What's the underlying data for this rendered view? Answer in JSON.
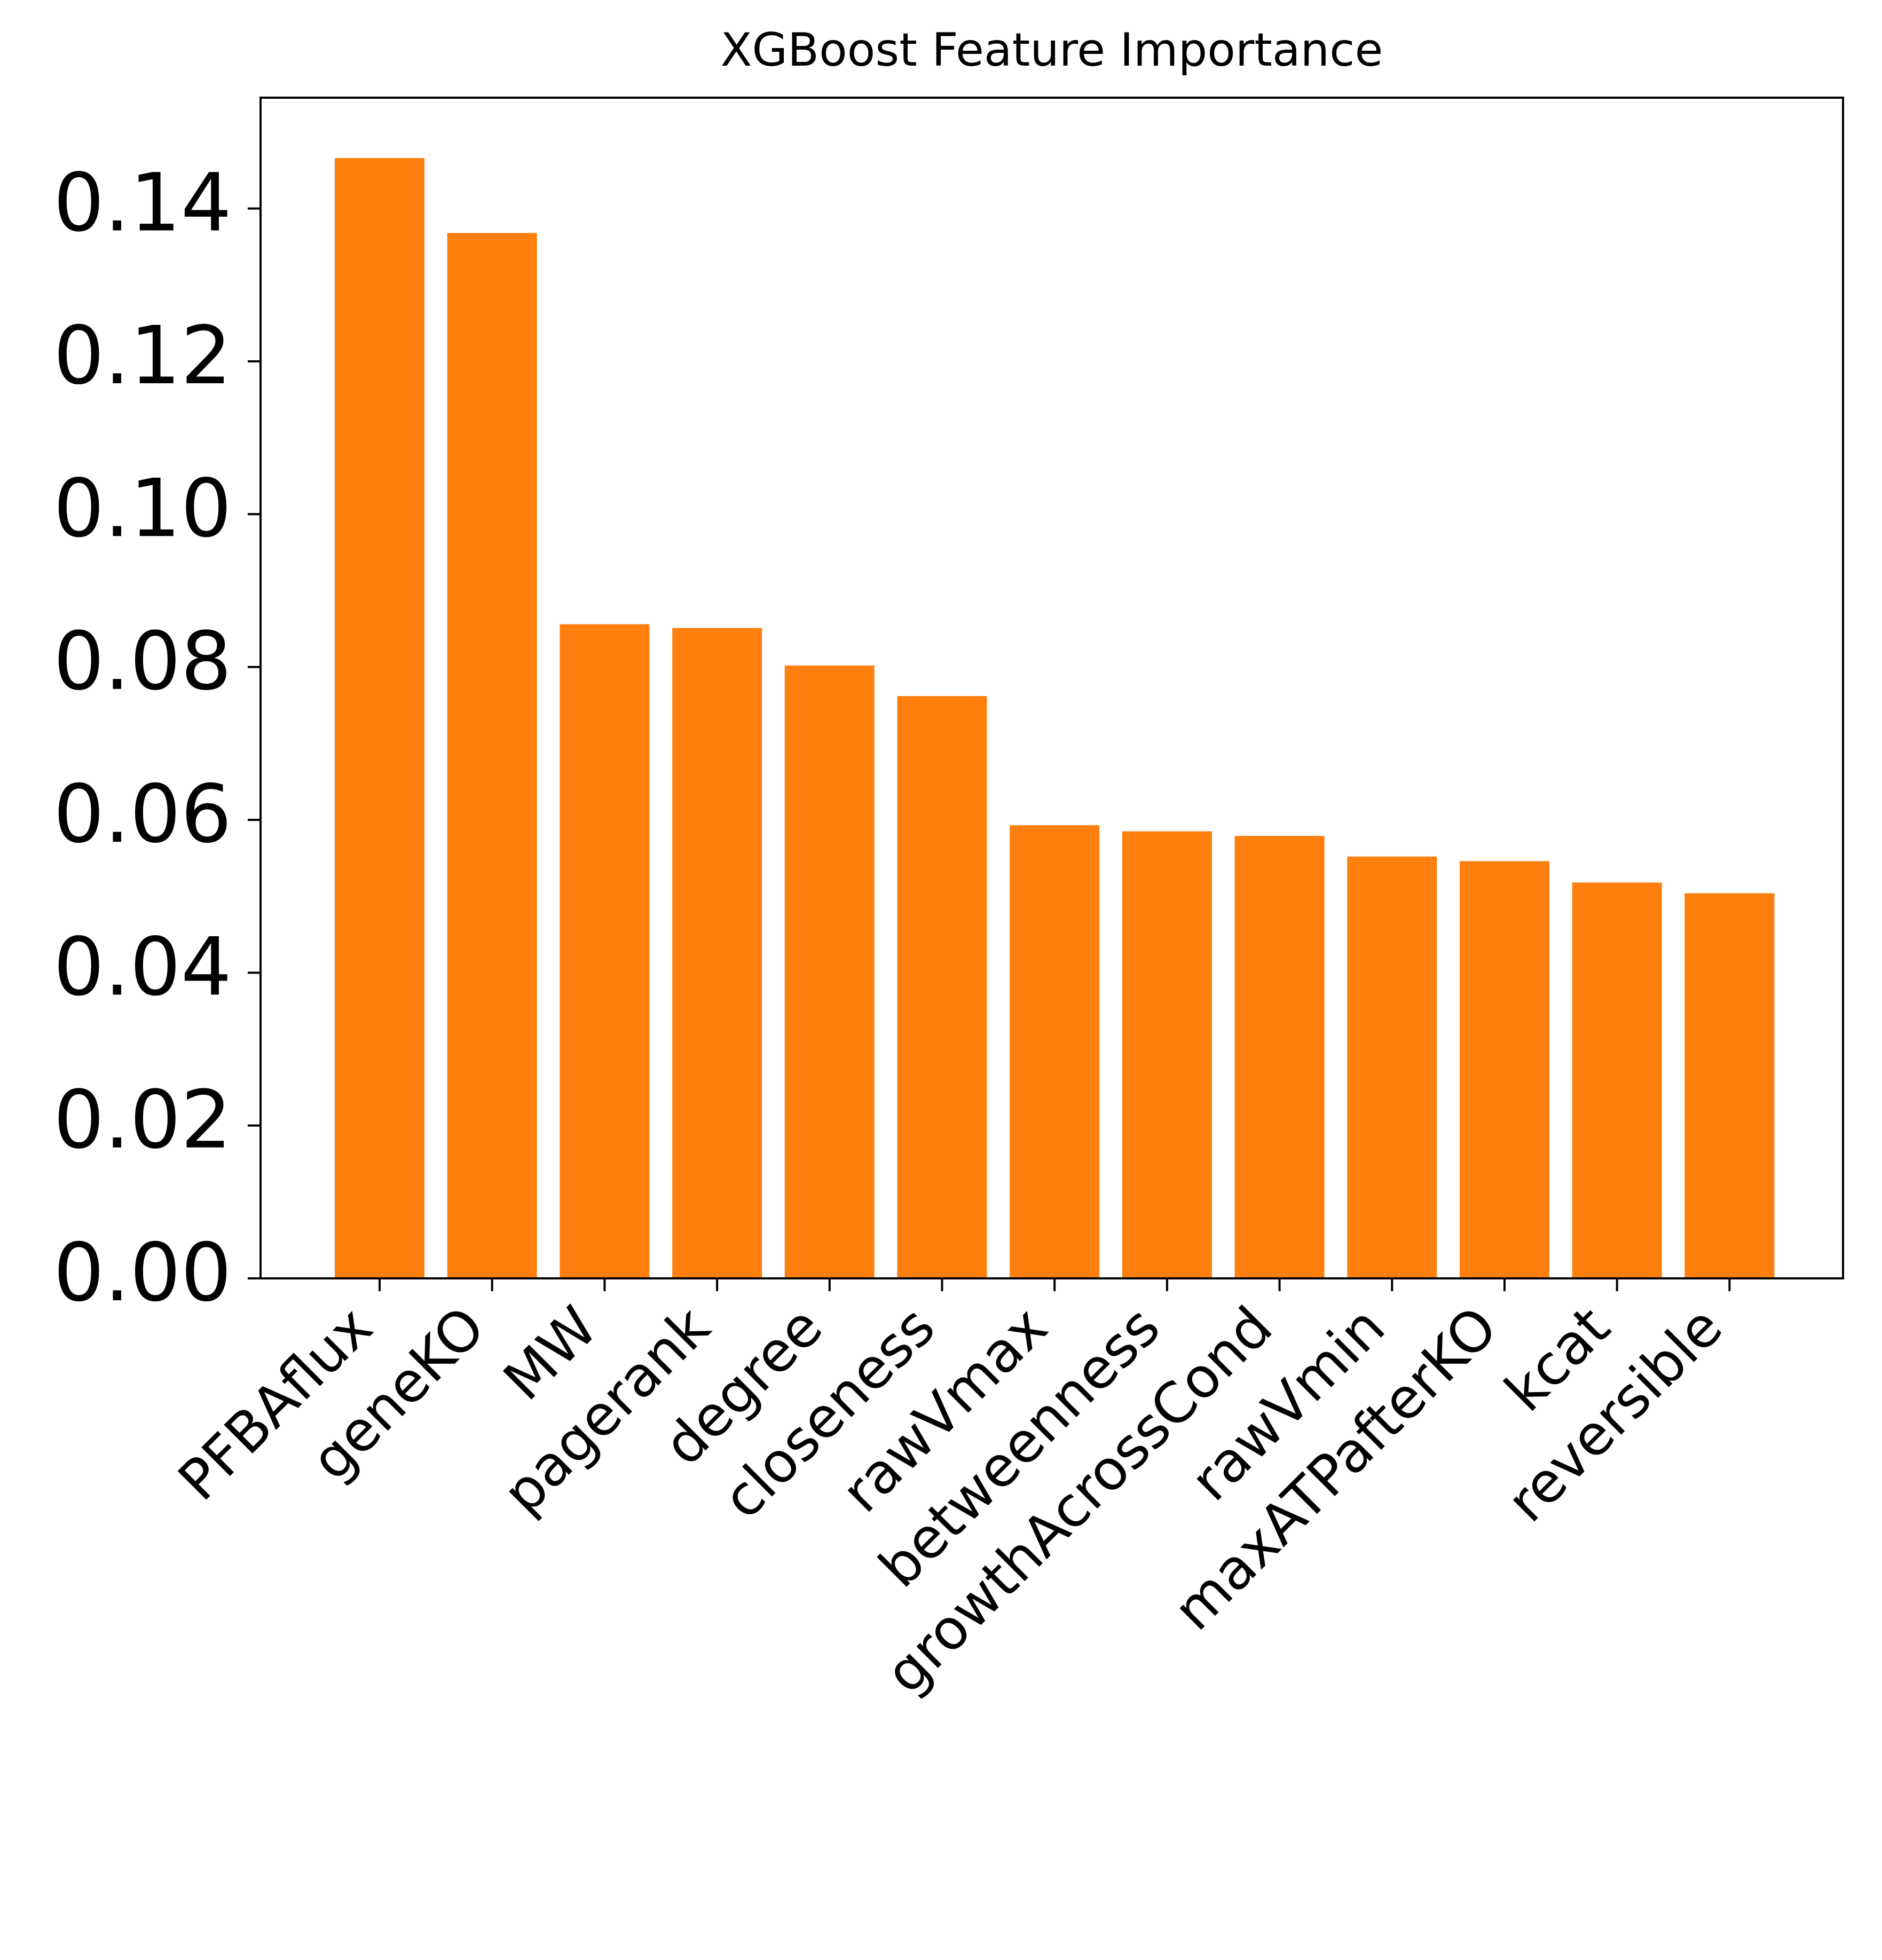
{
  "chart_data": {
    "type": "bar",
    "title": "XGBoost Feature Importance",
    "xlabel": "",
    "ylabel": "",
    "categories": [
      "PFBAflux",
      "geneKO",
      "MW",
      "pagerank",
      "degree",
      "closeness",
      "rawVmax",
      "betweenness",
      "growthAcrossCond",
      "rawVmin",
      "maxATPafterKO",
      "kcat",
      "reversible"
    ],
    "values": [
      0.1466,
      0.1368,
      0.0856,
      0.0851,
      0.0802,
      0.0762,
      0.0593,
      0.0585,
      0.0579,
      0.0552,
      0.0546,
      0.0518,
      0.0504
    ],
    "ylim": [
      0,
      0.1545
    ],
    "yticks": [
      0.0,
      0.02,
      0.04,
      0.06,
      0.08,
      0.1,
      0.12,
      0.14
    ],
    "ytick_labels": [
      "0.00",
      "0.02",
      "0.04",
      "0.06",
      "0.08",
      "0.10",
      "0.12",
      "0.14"
    ],
    "grid": false,
    "legend": "none",
    "bar_color": "#ff7f0e",
    "axis_color": "#000000"
  }
}
